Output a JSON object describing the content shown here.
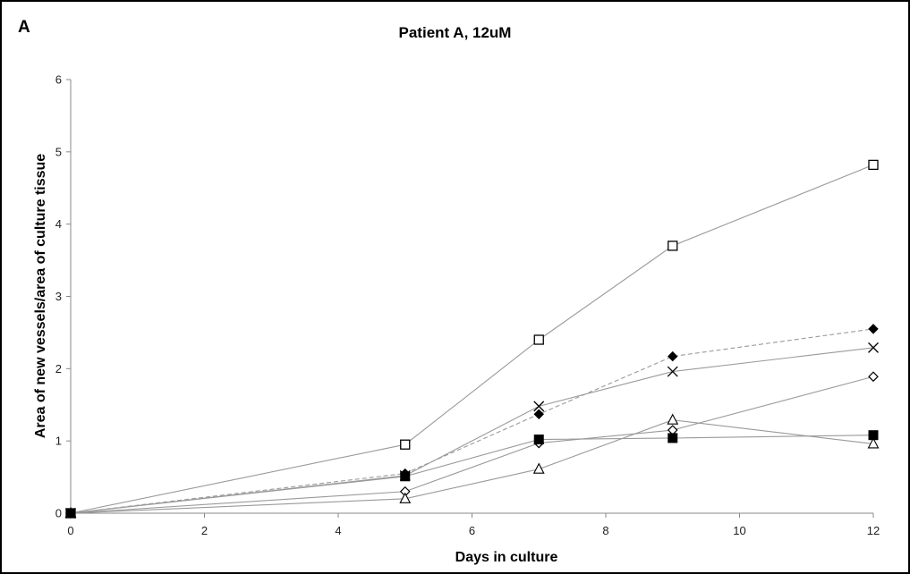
{
  "chart_data": {
    "type": "line",
    "panel_label": "A",
    "title": "Patient A, 12uM",
    "xlabel": "Days in culture",
    "ylabel": "Area of new vessels/area of culture tissue",
    "xlim": [
      0,
      12
    ],
    "ylim": [
      0,
      6
    ],
    "xticks": [
      0,
      2,
      4,
      6,
      8,
      10,
      12
    ],
    "yticks": [
      0,
      1,
      2,
      3,
      4,
      5,
      6
    ],
    "grid": false,
    "legend": "none",
    "x": [
      0,
      5,
      7,
      9,
      12
    ],
    "series": [
      {
        "marker": "open-square",
        "line_style": "solid",
        "values": [
          0,
          0.95,
          2.4,
          3.7,
          4.82
        ]
      },
      {
        "marker": "filled-diamond",
        "line_style": "dashed",
        "values": [
          0,
          0.55,
          1.37,
          2.17,
          2.55
        ]
      },
      {
        "marker": "cross",
        "line_style": "solid",
        "values": [
          0,
          0.52,
          1.48,
          1.96,
          2.29
        ]
      },
      {
        "marker": "open-diamond",
        "line_style": "solid",
        "values": [
          0,
          0.3,
          0.97,
          1.15,
          1.89
        ]
      },
      {
        "marker": "open-triangle",
        "line_style": "solid",
        "values": [
          0,
          0.2,
          0.61,
          1.29,
          0.96
        ]
      },
      {
        "marker": "filled-square",
        "line_style": "solid",
        "values": [
          0,
          0.51,
          1.02,
          1.04,
          1.08
        ]
      }
    ],
    "colors": {
      "line": "#9a9a9a",
      "marker": "#000000",
      "axis": "#888888"
    }
  }
}
